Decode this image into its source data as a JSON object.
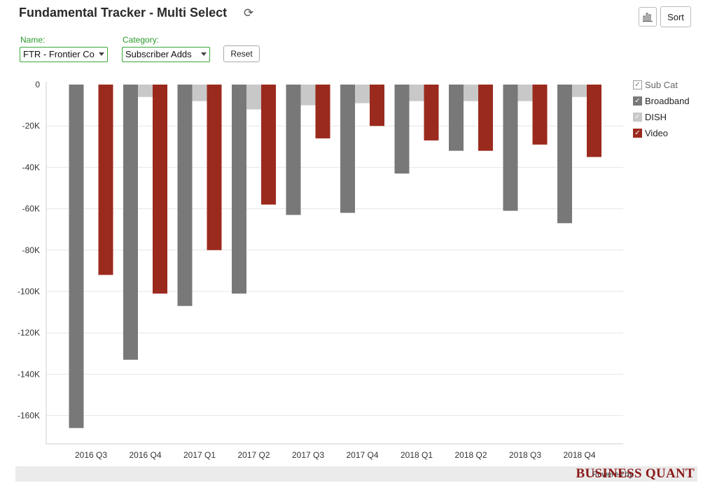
{
  "header": {
    "title": "Fundamental Tracker - Multi Select",
    "refresh_icon": "refresh-icon",
    "sort_label": "Sort",
    "chart_icon": "bar-chart-icon"
  },
  "filters": {
    "name_label": "Name:",
    "name_value": "FTR - Frontier Co",
    "category_label": "Category:",
    "category_value": "Subscriber Adds",
    "reset_label": "Reset"
  },
  "legend": {
    "title": "Sub Cat",
    "items": [
      {
        "label": "Broadband",
        "color": "#787878"
      },
      {
        "label": "DISH",
        "color": "#c8c8c8"
      },
      {
        "label": "Video",
        "color": "#9b2a1e"
      }
    ]
  },
  "footer": {
    "powered_by": "Powered by",
    "brand": "BUSINESS QUANT"
  },
  "chart_data": {
    "type": "bar",
    "categories": [
      "2016 Q3",
      "2016 Q4",
      "2017 Q1",
      "2017 Q2",
      "2017 Q3",
      "2017 Q4",
      "2018 Q1",
      "2018 Q2",
      "2018 Q3",
      "2018 Q4"
    ],
    "series": [
      {
        "name": "Broadband",
        "color": "#787878",
        "values": [
          -166000,
          -133000,
          -107000,
          -101000,
          -63000,
          -62000,
          -43000,
          -32000,
          -61000,
          -67000
        ]
      },
      {
        "name": "DISH",
        "color": "#c8c8c8",
        "values": [
          0,
          -6000,
          -8000,
          -12000,
          -10000,
          -9000,
          -8000,
          -8000,
          -8000,
          -6000
        ]
      },
      {
        "name": "Video",
        "color": "#9b2a1e",
        "values": [
          -92000,
          -101000,
          -80000,
          -58000,
          -26000,
          -20000,
          -27000,
          -32000,
          -29000,
          -35000
        ]
      }
    ],
    "yticks": [
      "0",
      "-20K",
      "-40K",
      "-60K",
      "-80K",
      "-100K",
      "-120K",
      "-140K",
      "-160K"
    ],
    "ylim": [
      -172000,
      0
    ],
    "grid": true,
    "legend_position": "right"
  }
}
